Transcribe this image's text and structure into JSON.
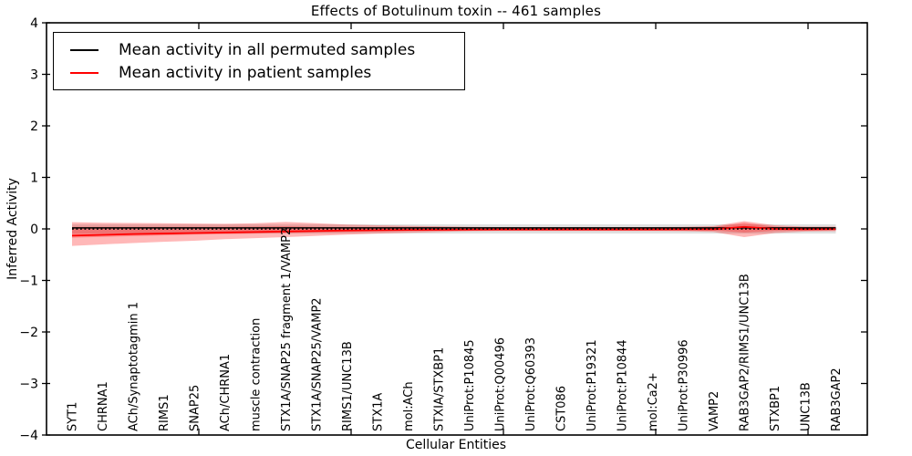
{
  "chart_data": {
    "type": "line",
    "title": "Effects of Botulinum toxin -- 461 samples",
    "xlabel": "Cellular Entities",
    "ylabel": "Inferred Activity",
    "ylim": [
      -4,
      4
    ],
    "yticks": [
      4,
      3,
      2,
      1,
      0,
      -1,
      -2,
      -3,
      -4
    ],
    "grid": false,
    "legend_position": "upper left",
    "categories": [
      "SYT1",
      "CHRNA1",
      "ACh/Synaptotagmin 1",
      "RIMS1",
      "SNAP25",
      "ACh/CHRNA1",
      "muscle contraction",
      "STX1A/SNAP25 fragment 1/VAMP2",
      "STX1A/SNAP25/VAMP2",
      "RIMS1/UNC13B",
      "STX1A",
      "mol:ACh",
      "STXIA/STXBP1",
      "UniProt:P10845",
      "UniProt:Q00496",
      "UniProt:Q60393",
      "CST086",
      "UniProt:P19321",
      "UniProt:P10844",
      "mol:Ca2+",
      "UniProt:P30996",
      "VAMP2",
      "RAB3GAP2/RIMS1/UNC13B",
      "STXBP1",
      "UNC13B",
      "RAB3GAP2"
    ],
    "series": [
      {
        "name": "Mean activity in all permuted samples",
        "color": "#000000",
        "style": "solid",
        "width": 1.4,
        "values": [
          0.02,
          0.02,
          0.02,
          0.02,
          0.02,
          0.02,
          0.02,
          0.02,
          0.02,
          0.02,
          0.02,
          0.02,
          0.02,
          0.02,
          0.02,
          0.02,
          0.02,
          0.02,
          0.02,
          0.02,
          0.02,
          0.02,
          0.02,
          0.02,
          0.02,
          0.02
        ]
      },
      {
        "name": "Mean activity in patient samples",
        "color": "#ff0000",
        "style": "solid",
        "width": 1.8,
        "values": [
          -0.13,
          -0.115,
          -0.1,
          -0.09,
          -0.08,
          -0.07,
          -0.06,
          -0.05,
          -0.04,
          -0.03,
          -0.025,
          -0.02,
          -0.018,
          -0.015,
          -0.012,
          -0.012,
          -0.012,
          -0.012,
          -0.012,
          -0.012,
          -0.01,
          -0.008,
          0.04,
          0.0,
          -0.008,
          -0.005
        ]
      },
      {
        "name": "zero reference",
        "color": "#000000",
        "style": "dotted",
        "width": 1.8,
        "values": [
          0,
          0,
          0,
          0,
          0,
          0,
          0,
          0,
          0,
          0,
          0,
          0,
          0,
          0,
          0,
          0,
          0,
          0,
          0,
          0,
          0,
          0,
          0,
          0,
          0,
          0
        ]
      }
    ],
    "bands": [
      {
        "name": "permuted spread",
        "color": "#000000",
        "opacity": 0.12,
        "upper": [
          0.09,
          0.09,
          0.09,
          0.09,
          0.09,
          0.09,
          0.09,
          0.09,
          0.09,
          0.09,
          0.09,
          0.09,
          0.09,
          0.09,
          0.09,
          0.09,
          0.09,
          0.09,
          0.09,
          0.09,
          0.09,
          0.09,
          0.09,
          0.09,
          0.09,
          0.09
        ],
        "lower": [
          -0.09,
          -0.09,
          -0.09,
          -0.09,
          -0.09,
          -0.09,
          -0.09,
          -0.09,
          -0.09,
          -0.09,
          -0.09,
          -0.09,
          -0.09,
          -0.09,
          -0.09,
          -0.09,
          -0.09,
          -0.09,
          -0.09,
          -0.09,
          -0.09,
          -0.09,
          -0.09,
          -0.09,
          -0.09,
          -0.09
        ]
      },
      {
        "name": "patient spread outer",
        "color": "#ff0000",
        "opacity": 0.28,
        "upper": [
          0.13,
          0.12,
          0.115,
          0.11,
          0.105,
          0.1,
          0.11,
          0.135,
          0.11,
          0.085,
          0.07,
          0.06,
          0.05,
          0.04,
          0.035,
          0.035,
          0.035,
          0.035,
          0.035,
          0.035,
          0.04,
          0.055,
          0.15,
          0.07,
          0.045,
          0.045
        ],
        "lower": [
          -0.33,
          -0.3,
          -0.275,
          -0.25,
          -0.23,
          -0.2,
          -0.18,
          -0.16,
          -0.135,
          -0.11,
          -0.09,
          -0.075,
          -0.06,
          -0.045,
          -0.04,
          -0.04,
          -0.04,
          -0.04,
          -0.04,
          -0.04,
          -0.045,
          -0.06,
          -0.16,
          -0.08,
          -0.05,
          -0.045
        ]
      },
      {
        "name": "patient spread inner",
        "color": "#ff0000",
        "opacity": 0.28,
        "upper": [
          0.04,
          0.04,
          0.04,
          0.04,
          0.04,
          0.04,
          0.045,
          0.05,
          0.04,
          0.035,
          0.03,
          0.03,
          0.025,
          0.02,
          0.02,
          0.02,
          0.02,
          0.02,
          0.02,
          0.02,
          0.02,
          0.03,
          0.12,
          0.04,
          0.025,
          0.025
        ],
        "lower": [
          -0.17,
          -0.155,
          -0.14,
          -0.125,
          -0.11,
          -0.1,
          -0.09,
          -0.08,
          -0.07,
          -0.06,
          -0.05,
          -0.04,
          -0.035,
          -0.025,
          -0.022,
          -0.022,
          -0.022,
          -0.022,
          -0.022,
          -0.022,
          -0.025,
          -0.03,
          -0.07,
          -0.04,
          -0.028,
          -0.025
        ]
      }
    ],
    "xticks_axis_units": [
      5,
      10,
      15,
      20,
      25
    ]
  },
  "legend": {
    "items": [
      {
        "label": "Mean activity in all permuted samples",
        "color": "#000000"
      },
      {
        "label": "Mean activity in patient samples",
        "color": "#ff0000"
      }
    ]
  }
}
